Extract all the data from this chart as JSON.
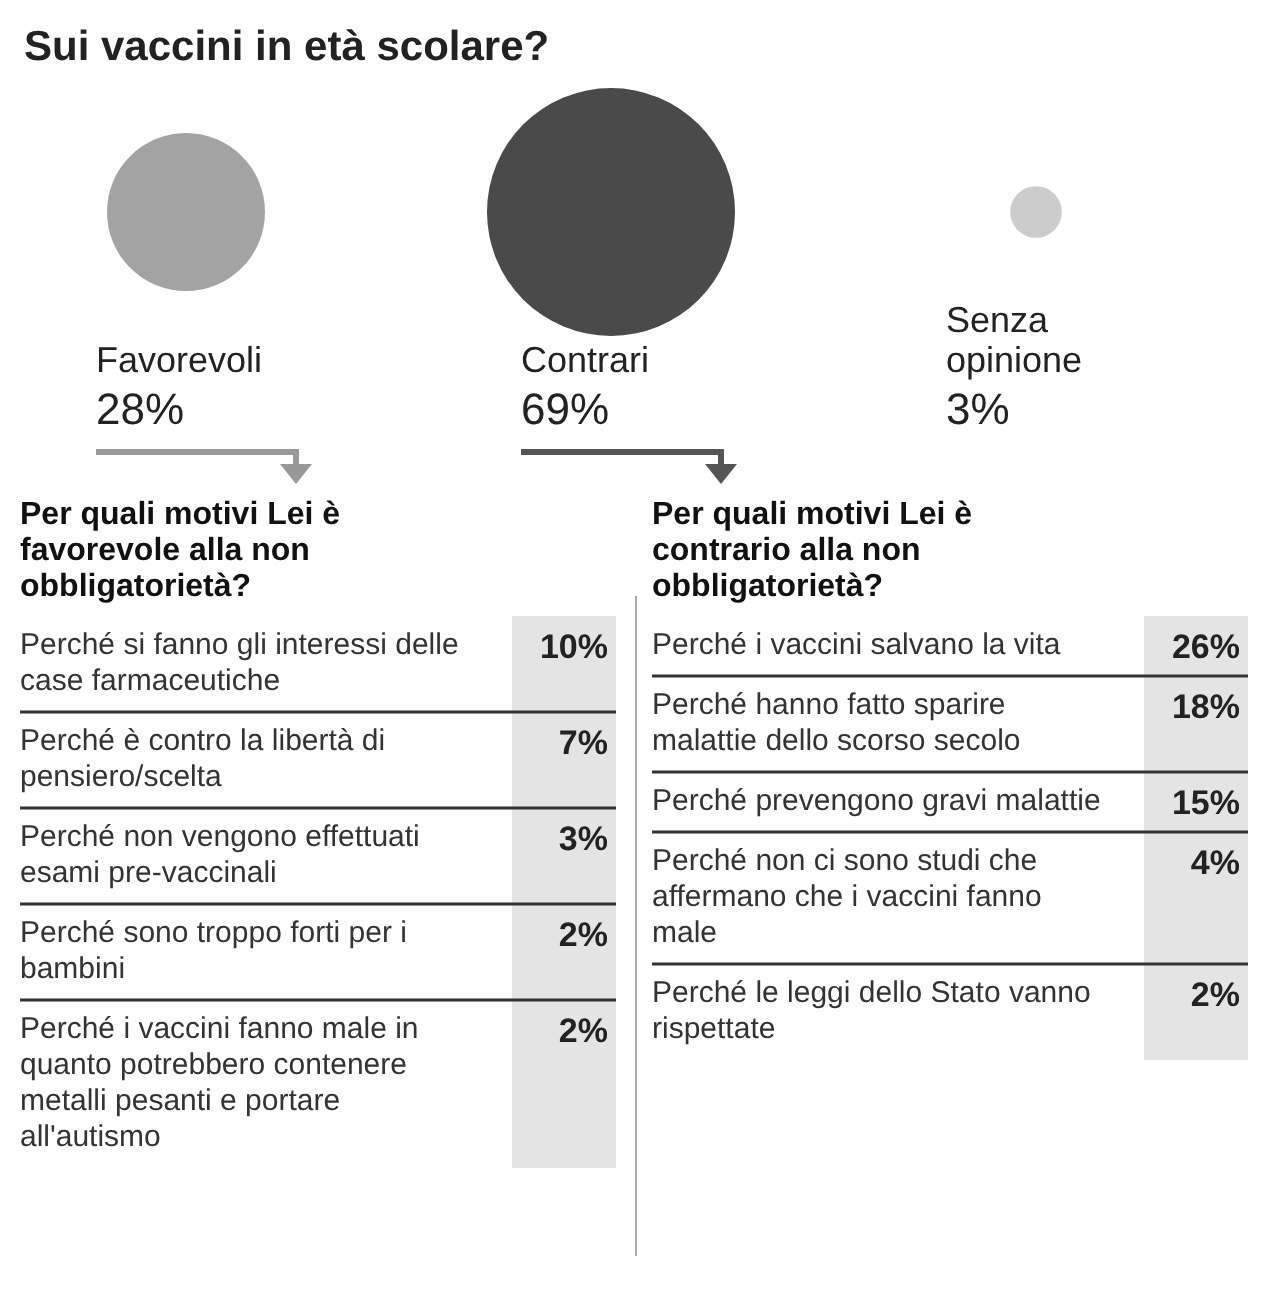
{
  "chart_data": [
    {
      "type": "other",
      "title": "Sui vaccini in età scolare?",
      "categories": [
        "Favorevoli",
        "Contrari",
        "Senza opinione"
      ],
      "values": [
        28,
        69,
        3
      ],
      "value_labels": [
        "28%",
        "69%",
        "3%"
      ],
      "colors": [
        "#a3a3a3",
        "#4a4a4a",
        "#cccccc"
      ]
    },
    {
      "type": "other",
      "title": "Per quali motivi Lei è favorevole alla non obbligatorietà?",
      "categories": [
        "Perché si fanno gli interessi delle case farmaceutiche",
        "Perché è contro la libertà di pensiero/scelta",
        "Perché non vengono effettuati esami pre-vaccinali",
        "Perché sono troppo forti per i bambini",
        "Perché i vaccini fanno male in quanto potrebbero contenere metalli pesanti e portare all'autismo"
      ],
      "values": [
        10,
        7,
        3,
        2,
        2
      ],
      "value_labels": [
        "10%",
        "7%",
        "3%",
        "2%",
        "2%"
      ]
    },
    {
      "type": "other",
      "title": "Per quali motivi Lei è contrario alla non obbligatorietà?",
      "categories": [
        "Perché i vaccini salvano la vita",
        "Perché hanno fatto sparire malattie dello scorso secolo",
        "Perché prevengono gravi malattie",
        "Perché non ci sono studi che affermano che i vaccini fanno male",
        "Perché le leggi dello Stato vanno rispettate"
      ],
      "values": [
        26,
        18,
        15,
        4,
        2
      ],
      "value_labels": [
        "26%",
        "18%",
        "15%",
        "4%",
        "2%"
      ]
    }
  ]
}
